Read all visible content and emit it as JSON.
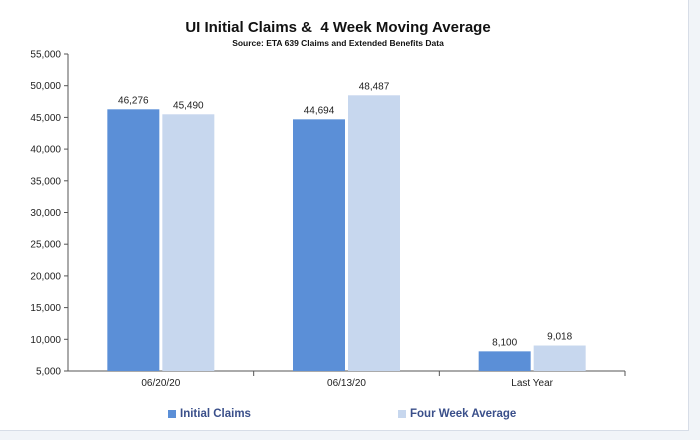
{
  "colors": {
    "initial": "#5b8fd7",
    "average": "#c7d7ee",
    "axis": "#555555",
    "legend_text": "#3a4f8a"
  },
  "chart_data": {
    "type": "bar",
    "title": "UI Initial Claims &  4 Week Moving Average",
    "subtitle": "Source: ETA 639 Claims and Extended Benefits Data",
    "categories": [
      "06/20/20",
      "06/13/20",
      "Last Year"
    ],
    "series": [
      {
        "name": "Initial Claims",
        "values": [
          46276,
          44694,
          8100
        ],
        "labels": [
          "46,276",
          "44,694",
          "8,100"
        ]
      },
      {
        "name": "Four Week Average",
        "values": [
          45490,
          48487,
          9018
        ],
        "labels": [
          "45,490",
          "48,487",
          "9,018"
        ]
      }
    ],
    "ylim": [
      5000,
      55000
    ],
    "yticks": [
      5000,
      10000,
      15000,
      20000,
      25000,
      30000,
      35000,
      40000,
      45000,
      50000,
      55000
    ],
    "ytick_labels": [
      "5,000",
      "10,000",
      "15,000",
      "20,000",
      "25,000",
      "30,000",
      "35,000",
      "40,000",
      "45,000",
      "50,000",
      "55,000"
    ],
    "xlabel": "",
    "ylabel": "",
    "legend_position": "bottom",
    "grid": false
  }
}
